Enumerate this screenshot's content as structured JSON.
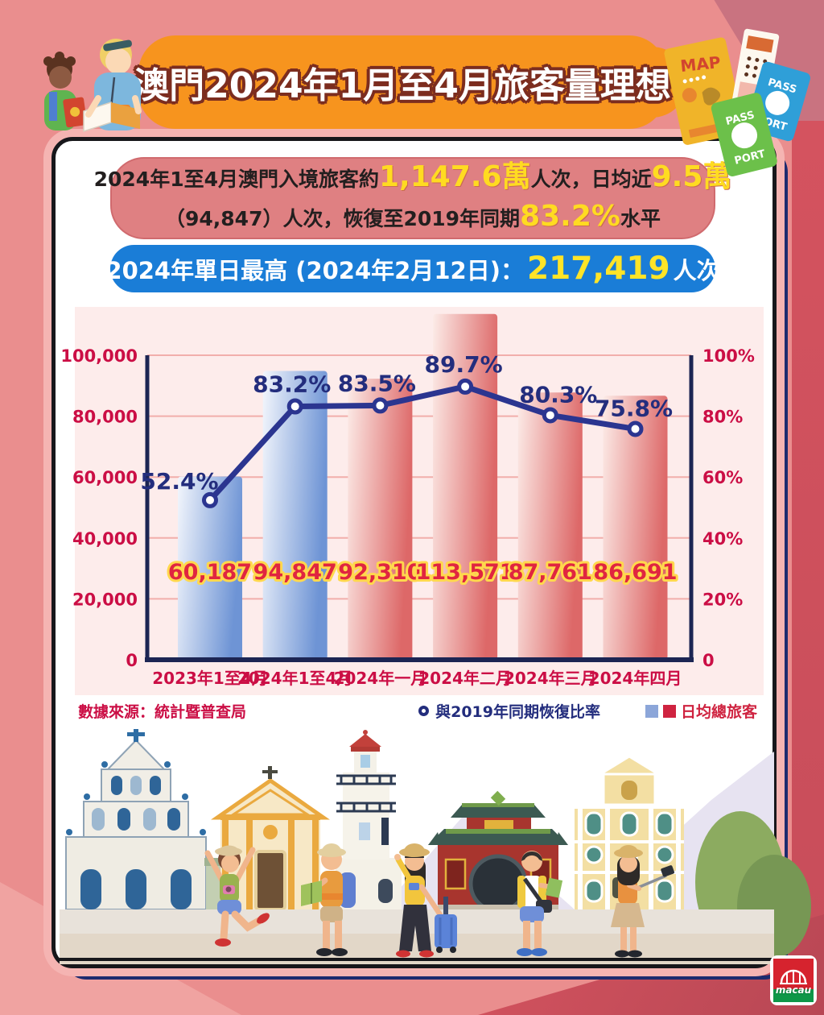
{
  "title": {
    "banner": "澳門2024年1月至4月旅客量理想"
  },
  "summary": {
    "line1": {
      "t1": "2024年1至4月澳門入境旅客約",
      "n1": "1,147.6萬",
      "t2": "人次，日均近",
      "n2": "9.5萬"
    },
    "line2": {
      "t1": "（94,847）人次，恢復至2019年同期",
      "n1": "83.2%",
      "t2": "水平"
    }
  },
  "peak": {
    "label": "2024年單日最高 (2024年2月12日)：",
    "number": "217,419",
    "suffix": "人次"
  },
  "chart_data": {
    "type": "bar+line",
    "categories": [
      "2023年1至4月",
      "2024年1至4月",
      "2024年一月",
      "2024年二月",
      "2024年三月",
      "2024年四月"
    ],
    "series": [
      {
        "name": "日均總旅客",
        "type": "bar",
        "values": [
          60187,
          94847,
          92310,
          113571,
          87761,
          86691
        ],
        "value_labels": [
          "60,187",
          "94,847",
          "92,310",
          "113,571",
          "87,761",
          "86,691"
        ],
        "bar_styles": [
          "blue",
          "blue",
          "red",
          "red",
          "red",
          "red"
        ]
      },
      {
        "name": "與2019年同期恢復比率",
        "type": "line",
        "values": [
          52.4,
          83.2,
          83.5,
          89.7,
          80.3,
          75.8
        ],
        "value_labels": [
          "52.4%",
          "83.2%",
          "83.5%",
          "89.7%",
          "80.3%",
          "75.8%"
        ]
      }
    ],
    "left_axis": {
      "max": 100000,
      "ticks": [
        "100,000",
        "80,000",
        "60,000",
        "40,000",
        "20,000",
        "0"
      ]
    },
    "right_axis": {
      "max": 100,
      "ticks": [
        "100%",
        "80%",
        "60%",
        "40%",
        "20%",
        "0"
      ]
    },
    "grid": true,
    "legend_position": "bottom-right",
    "style": {
      "bar_blue": [
        "#f3f6fc",
        "#6e94d5"
      ],
      "bar_red": [
        "#fcebe7",
        "#dd6868"
      ],
      "line_color": "#2b3590",
      "grid_color": "#f2aeab",
      "axis_color": "#1c2553"
    }
  },
  "footer": {
    "source": "數據來源：統計暨普查局",
    "line_legend": "與2019年同期恢復比率",
    "bar_legend": "日均總旅客"
  },
  "decor": {
    "map": "MAP",
    "pass": "PASS",
    "port": "PORT",
    "logo_text": "macau"
  },
  "colors": {
    "banner_orange": "#f7941e",
    "pill_red": "#df8082",
    "pill_blue": "#1a7dd7",
    "highlight_yellow": "#ffdb21",
    "crimson": "#cb0e45",
    "navy": "#232d7d",
    "panel_pink": "#fdeceb"
  }
}
